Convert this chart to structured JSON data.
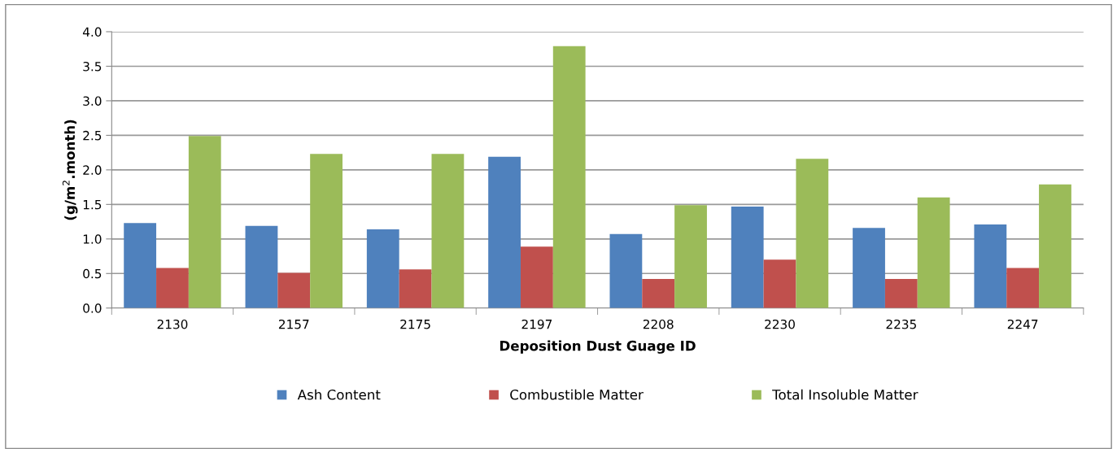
{
  "chart_data": {
    "type": "bar",
    "xlabel": "Deposition Dust Guage ID",
    "ylabel": "(g/m$^{2}$.month)",
    "categories": [
      "2130",
      "2157",
      "2175",
      "2197",
      "2208",
      "2230",
      "2235",
      "2247"
    ],
    "series": [
      {
        "name": "Ash Content",
        "color": "#4f81bd",
        "values": [
          1.23,
          1.19,
          1.14,
          2.19,
          1.07,
          1.47,
          1.16,
          1.21
        ]
      },
      {
        "name": "Combustible Matter",
        "color": "#c0504d",
        "values": [
          0.58,
          0.51,
          0.56,
          0.89,
          0.42,
          0.7,
          0.42,
          0.58
        ]
      },
      {
        "name": "Total Insoluble Matter",
        "color": "#9bbb59",
        "values": [
          2.49,
          2.23,
          2.23,
          3.79,
          1.49,
          2.16,
          1.6,
          1.79
        ]
      }
    ],
    "ylim": [
      0,
      4
    ],
    "yticks": [
      {
        "value": 0,
        "label": "0.0"
      },
      {
        "value": 0.5,
        "label": "0.5"
      },
      {
        "value": 1,
        "label": "1.0"
      },
      {
        "value": 1.5,
        "label": "1.5"
      },
      {
        "value": 2,
        "label": "2.0"
      },
      {
        "value": 2.5,
        "label": "2.5"
      },
      {
        "value": 3,
        "label": "3.0"
      },
      {
        "value": 3.5,
        "label": "3.5"
      },
      {
        "value": 4,
        "label": "4.0"
      }
    ],
    "grid": "y",
    "legend": "bottom"
  }
}
